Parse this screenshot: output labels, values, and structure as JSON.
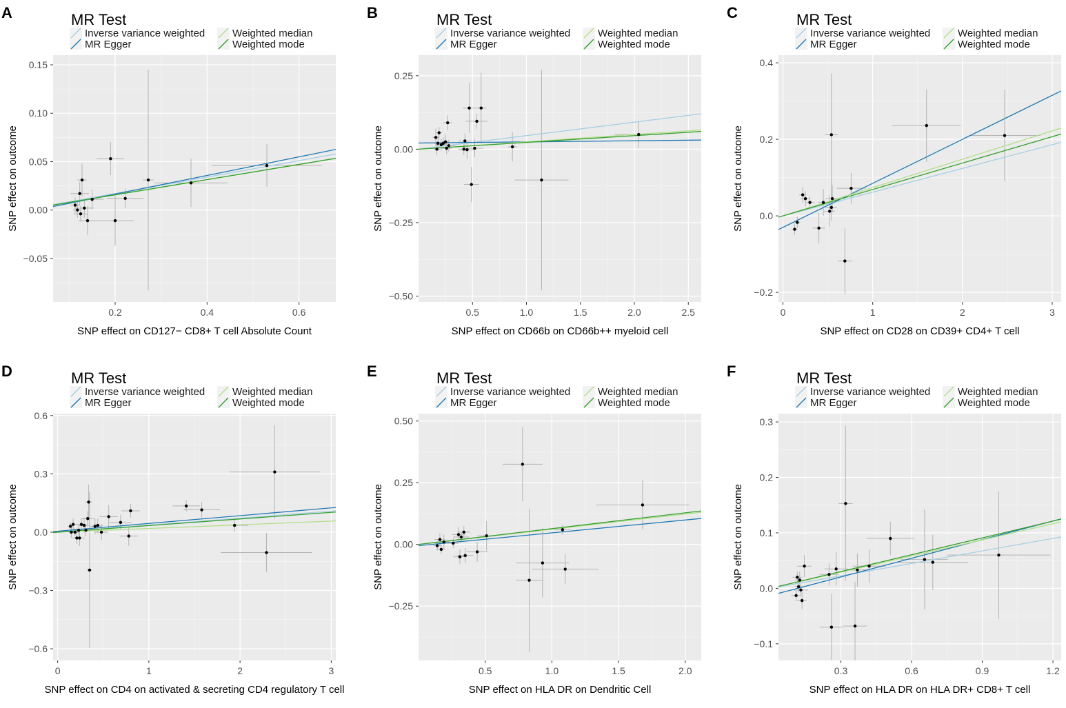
{
  "legend_title": "MR Test",
  "methods": [
    "Inverse variance weighted",
    "Weighted median",
    "MR Egger",
    "Weighted mode"
  ],
  "colors": {
    "panel_bg": "#ebebeb",
    "grid": "#ffffff",
    "Inverse variance weighted": "#a6cee3",
    "MR Egger": "#1f78b4",
    "Weighted median": "#b2df8a",
    "Weighted mode": "#33a02c",
    "errorbar": "#b3b3b3",
    "point": "#000000"
  },
  "chart_data": [
    {
      "type": "scatter",
      "panel": "A",
      "xlabel": "SNP effect on CD127− CD8+ T cell Absolute Count",
      "ylabel": "SNP effect on outcome",
      "xlim": [
        0.065,
        0.68
      ],
      "ylim": [
        -0.095,
        0.16
      ],
      "xticks": [
        0.2,
        0.4,
        0.6
      ],
      "xtick_labels": [
        "0.2",
        "0.4",
        "0.6"
      ],
      "yticks": [
        -0.05,
        0.0,
        0.05,
        0.1,
        0.15
      ],
      "ytick_labels": [
        "−0.05",
        "0.00",
        "0.05",
        "0.10",
        "0.15"
      ],
      "points": [
        {
          "x": 0.113,
          "y": 0.005,
          "xse": 0.01,
          "yse": 0.008
        },
        {
          "x": 0.118,
          "y": 0.0,
          "xse": 0.01,
          "yse": 0.008
        },
        {
          "x": 0.123,
          "y": 0.017,
          "xse": 0.02,
          "yse": 0.012
        },
        {
          "x": 0.125,
          "y": -0.004,
          "xse": 0.015,
          "yse": 0.008
        },
        {
          "x": 0.128,
          "y": 0.031,
          "xse": 0.01,
          "yse": 0.017
        },
        {
          "x": 0.133,
          "y": 0.002,
          "xse": 0.02,
          "yse": 0.01
        },
        {
          "x": 0.14,
          "y": -0.011,
          "xse": 0.02,
          "yse": 0.015
        },
        {
          "x": 0.15,
          "y": 0.011,
          "xse": 0.025,
          "yse": 0.01
        },
        {
          "x": 0.19,
          "y": 0.053,
          "xse": 0.03,
          "yse": 0.017
        },
        {
          "x": 0.2,
          "y": -0.011,
          "xse": 0.04,
          "yse": 0.026
        },
        {
          "x": 0.222,
          "y": 0.012,
          "xse": 0.04,
          "yse": 0.01
        },
        {
          "x": 0.272,
          "y": 0.031,
          "xse": 0.012,
          "yse": 0.114
        },
        {
          "x": 0.365,
          "y": 0.028,
          "xse": 0.08,
          "yse": 0.025
        },
        {
          "x": 0.53,
          "y": 0.046,
          "xse": 0.12,
          "yse": 0.022
        }
      ],
      "lines": [
        {
          "method": "Inverse variance weighted",
          "intercept": 0.0,
          "slope": 0.085
        },
        {
          "method": "MR Egger",
          "intercept": -0.0027,
          "slope": 0.096
        },
        {
          "method": "Weighted median",
          "intercept": 0.0,
          "slope": 0.0785
        },
        {
          "method": "Weighted mode",
          "intercept": 0.0,
          "slope": 0.0785
        }
      ]
    },
    {
      "type": "scatter",
      "panel": "B",
      "xlabel": "SNP effect on CD66b on CD66b++ myeloid cell",
      "ylabel": "SNP effect on outcome",
      "xlim": [
        0.0,
        2.62
      ],
      "ylim": [
        -0.52,
        0.32
      ],
      "xticks": [
        0.5,
        1.0,
        1.5,
        2.0,
        2.5
      ],
      "xtick_labels": [
        "0.5",
        "1.0",
        "1.5",
        "2.0",
        "2.5"
      ],
      "yticks": [
        -0.5,
        -0.25,
        0.0,
        0.25
      ],
      "ytick_labels": [
        "−0.50",
        "−0.25",
        "0.00",
        "0.25"
      ],
      "points": [
        {
          "x": 0.16,
          "y": 0.04,
          "xse": 0.03,
          "yse": 0.03
        },
        {
          "x": 0.17,
          "y": 0.0,
          "xse": 0.03,
          "yse": 0.02
        },
        {
          "x": 0.18,
          "y": 0.02,
          "xse": 0.04,
          "yse": 0.025
        },
        {
          "x": 0.19,
          "y": 0.056,
          "xse": 0.03,
          "yse": 0.02
        },
        {
          "x": 0.21,
          "y": 0.015,
          "xse": 0.05,
          "yse": 0.02
        },
        {
          "x": 0.23,
          "y": 0.02,
          "xse": 0.04,
          "yse": 0.02
        },
        {
          "x": 0.25,
          "y": 0.025,
          "xse": 0.03,
          "yse": 0.025
        },
        {
          "x": 0.26,
          "y": 0.003,
          "xse": 0.05,
          "yse": 0.02
        },
        {
          "x": 0.27,
          "y": 0.09,
          "xse": 0.04,
          "yse": 0.025
        },
        {
          "x": 0.28,
          "y": 0.012,
          "xse": 0.06,
          "yse": 0.02
        },
        {
          "x": 0.42,
          "y": 0.0,
          "xse": 0.05,
          "yse": 0.02
        },
        {
          "x": 0.43,
          "y": 0.028,
          "xse": 0.06,
          "yse": 0.025
        },
        {
          "x": 0.45,
          "y": -0.002,
          "xse": 0.06,
          "yse": 0.03
        },
        {
          "x": 0.47,
          "y": 0.14,
          "xse": 0.06,
          "yse": 0.085
        },
        {
          "x": 0.49,
          "y": -0.12,
          "xse": 0.07,
          "yse": 0.06
        },
        {
          "x": 0.52,
          "y": 0.003,
          "xse": 0.08,
          "yse": 0.03
        },
        {
          "x": 0.54,
          "y": 0.095,
          "xse": 0.1,
          "yse": 0.025
        },
        {
          "x": 0.58,
          "y": 0.14,
          "xse": 0.05,
          "yse": 0.12
        },
        {
          "x": 0.87,
          "y": 0.008,
          "xse": 0.04,
          "yse": 0.05
        },
        {
          "x": 1.14,
          "y": -0.105,
          "xse": 0.25,
          "yse": 0.375
        },
        {
          "x": 2.04,
          "y": 0.05,
          "xse": 0.22,
          "yse": 0.045
        }
      ],
      "lines": [
        {
          "method": "Inverse variance weighted",
          "intercept": 0.0,
          "slope": 0.046
        },
        {
          "method": "MR Egger",
          "intercept": 0.021,
          "slope": 0.0038
        },
        {
          "method": "Weighted median",
          "intercept": 0.0,
          "slope": 0.025
        },
        {
          "method": "Weighted mode",
          "intercept": 0.0,
          "slope": 0.023
        }
      ]
    },
    {
      "type": "scatter",
      "panel": "C",
      "xlabel": "SNP effect on CD28 on CD39+ CD4+ T cell",
      "ylabel": "SNP effect on outcome",
      "xlim": [
        -0.05,
        3.1
      ],
      "ylim": [
        -0.225,
        0.42
      ],
      "xticks": [
        0,
        1,
        2,
        3
      ],
      "xtick_labels": [
        "0",
        "1",
        "2",
        "3"
      ],
      "yticks": [
        -0.2,
        0.0,
        0.2,
        0.4
      ],
      "ytick_labels": [
        "−0.2",
        "0.0",
        "0.2",
        "0.4"
      ],
      "points": [
        {
          "x": 0.13,
          "y": -0.035,
          "xse": 0.03,
          "yse": 0.015
        },
        {
          "x": 0.16,
          "y": -0.017,
          "xse": 0.03,
          "yse": 0.015
        },
        {
          "x": 0.22,
          "y": 0.055,
          "xse": 0.04,
          "yse": 0.02
        },
        {
          "x": 0.25,
          "y": 0.045,
          "xse": 0.05,
          "yse": 0.02
        },
        {
          "x": 0.3,
          "y": 0.035,
          "xse": 0.05,
          "yse": 0.015
        },
        {
          "x": 0.4,
          "y": -0.032,
          "xse": 0.07,
          "yse": 0.04
        },
        {
          "x": 0.45,
          "y": 0.035,
          "xse": 0.06,
          "yse": 0.035
        },
        {
          "x": 0.52,
          "y": 0.012,
          "xse": 0.06,
          "yse": 0.04
        },
        {
          "x": 0.54,
          "y": 0.212,
          "xse": 0.07,
          "yse": 0.16
        },
        {
          "x": 0.54,
          "y": 0.022,
          "xse": 0.06,
          "yse": 0.035
        },
        {
          "x": 0.55,
          "y": 0.045,
          "xse": 0.08,
          "yse": 0.035
        },
        {
          "x": 0.69,
          "y": -0.118,
          "xse": 0.08,
          "yse": 0.085
        },
        {
          "x": 0.76,
          "y": 0.072,
          "xse": 0.16,
          "yse": 0.04
        },
        {
          "x": 1.6,
          "y": 0.236,
          "xse": 0.38,
          "yse": 0.095
        },
        {
          "x": 2.47,
          "y": 0.21,
          "xse": 0.4,
          "yse": 0.12
        }
      ],
      "lines": [
        {
          "method": "Inverse variance weighted",
          "intercept": 0.0,
          "slope": 0.062
        },
        {
          "method": "MR Egger",
          "intercept": -0.03,
          "slope": 0.115
        },
        {
          "method": "Weighted median",
          "intercept": 0.0,
          "slope": 0.074
        },
        {
          "method": "Weighted mode",
          "intercept": 0.0,
          "slope": 0.069
        }
      ]
    },
    {
      "type": "scatter",
      "panel": "D",
      "xlabel": "SNP effect on CD4 on activated & secreting CD4 regulatory T cell",
      "ylabel": "SNP effect on outcome",
      "xlim": [
        -0.05,
        3.05
      ],
      "ylim": [
        -0.66,
        0.61
      ],
      "xticks": [
        0,
        1,
        2,
        3
      ],
      "xtick_labels": [
        "0",
        "1",
        "2",
        "3"
      ],
      "yticks": [
        -0.6,
        -0.3,
        0.0,
        0.3,
        0.6
      ],
      "ytick_labels": [
        "−0.6",
        "−0.3",
        "0.0",
        "0.3",
        "0.6"
      ],
      "points": [
        {
          "x": 0.14,
          "y": 0.03,
          "xse": 0.03,
          "yse": 0.02
        },
        {
          "x": 0.15,
          "y": 0.0,
          "xse": 0.03,
          "yse": 0.03
        },
        {
          "x": 0.17,
          "y": 0.04,
          "xse": 0.04,
          "yse": 0.03
        },
        {
          "x": 0.19,
          "y": 0.0,
          "xse": 0.04,
          "yse": 0.02
        },
        {
          "x": 0.21,
          "y": -0.03,
          "xse": 0.05,
          "yse": 0.03
        },
        {
          "x": 0.23,
          "y": 0.01,
          "xse": 0.04,
          "yse": 0.03
        },
        {
          "x": 0.24,
          "y": -0.03,
          "xse": 0.06,
          "yse": 0.04
        },
        {
          "x": 0.26,
          "y": 0.04,
          "xse": 0.05,
          "yse": 0.03
        },
        {
          "x": 0.29,
          "y": 0.035,
          "xse": 0.06,
          "yse": 0.04
        },
        {
          "x": 0.31,
          "y": 0.01,
          "xse": 0.08,
          "yse": 0.03
        },
        {
          "x": 0.33,
          "y": 0.07,
          "xse": 0.07,
          "yse": 0.04
        },
        {
          "x": 0.34,
          "y": 0.155,
          "xse": 0.04,
          "yse": 0.09
        },
        {
          "x": 0.35,
          "y": -0.195,
          "xse": 0.03,
          "yse": 0.4
        },
        {
          "x": 0.41,
          "y": 0.03,
          "xse": 0.06,
          "yse": 0.04
        },
        {
          "x": 0.44,
          "y": 0.035,
          "xse": 0.06,
          "yse": 0.035
        },
        {
          "x": 0.48,
          "y": 0.0,
          "xse": 0.07,
          "yse": 0.04
        },
        {
          "x": 0.56,
          "y": 0.08,
          "xse": 0.1,
          "yse": 0.06
        },
        {
          "x": 0.69,
          "y": 0.05,
          "xse": 0.12,
          "yse": 0.04
        },
        {
          "x": 0.78,
          "y": -0.02,
          "xse": 0.1,
          "yse": 0.05
        },
        {
          "x": 0.8,
          "y": 0.11,
          "xse": 0.1,
          "yse": 0.035
        },
        {
          "x": 1.41,
          "y": 0.135,
          "xse": 0.15,
          "yse": 0.03
        },
        {
          "x": 1.58,
          "y": 0.115,
          "xse": 0.2,
          "yse": 0.04
        },
        {
          "x": 1.94,
          "y": 0.035,
          "xse": 0.15,
          "yse": 0.035
        },
        {
          "x": 2.29,
          "y": -0.105,
          "xse": 0.5,
          "yse": 0.1
        },
        {
          "x": 2.38,
          "y": 0.31,
          "xse": 0.5,
          "yse": 0.24
        }
      ],
      "lines": [
        {
          "method": "Inverse variance weighted",
          "intercept": 0.0,
          "slope": 0.036
        },
        {
          "method": "MR Egger",
          "intercept": 0.005,
          "slope": 0.04
        },
        {
          "method": "Weighted median",
          "intercept": 0.0,
          "slope": 0.019
        },
        {
          "method": "Weighted mode",
          "intercept": 0.0,
          "slope": 0.034
        }
      ]
    },
    {
      "type": "scatter",
      "panel": "E",
      "xlabel": "SNP effect on HLA DR on Dendritic Cell",
      "ylabel": "SNP effect on outcome",
      "xlim": [
        0.0,
        2.12
      ],
      "ylim": [
        -0.47,
        0.53
      ],
      "xticks": [
        0.5,
        1.0,
        1.5,
        2.0
      ],
      "xtick_labels": [
        "0.5",
        "1.0",
        "1.5",
        "2.0"
      ],
      "yticks": [
        -0.25,
        0.0,
        0.25,
        0.5
      ],
      "ytick_labels": [
        "−0.25",
        "0.00",
        "0.25",
        "0.50"
      ],
      "points": [
        {
          "x": 0.14,
          "y": -0.005,
          "xse": 0.03,
          "yse": 0.02
        },
        {
          "x": 0.16,
          "y": 0.02,
          "xse": 0.04,
          "yse": 0.025
        },
        {
          "x": 0.17,
          "y": -0.02,
          "xse": 0.03,
          "yse": 0.02
        },
        {
          "x": 0.19,
          "y": 0.01,
          "xse": 0.04,
          "yse": 0.03
        },
        {
          "x": 0.26,
          "y": 0.005,
          "xse": 0.04,
          "yse": 0.02
        },
        {
          "x": 0.3,
          "y": 0.04,
          "xse": 0.05,
          "yse": 0.03
        },
        {
          "x": 0.31,
          "y": -0.05,
          "xse": 0.05,
          "yse": 0.03
        },
        {
          "x": 0.32,
          "y": 0.03,
          "xse": 0.06,
          "yse": 0.02
        },
        {
          "x": 0.34,
          "y": 0.05,
          "xse": 0.05,
          "yse": 0.025
        },
        {
          "x": 0.35,
          "y": -0.045,
          "xse": 0.06,
          "yse": 0.03
        },
        {
          "x": 0.44,
          "y": -0.03,
          "xse": 0.08,
          "yse": 0.04
        },
        {
          "x": 0.51,
          "y": 0.035,
          "xse": 0.07,
          "yse": 0.06
        },
        {
          "x": 0.78,
          "y": 0.325,
          "xse": 0.15,
          "yse": 0.15
        },
        {
          "x": 0.83,
          "y": -0.145,
          "xse": 0.1,
          "yse": 0.29
        },
        {
          "x": 0.93,
          "y": -0.075,
          "xse": 0.2,
          "yse": 0.14
        },
        {
          "x": 1.08,
          "y": 0.06,
          "xse": 0.06,
          "yse": 0.02
        },
        {
          "x": 1.1,
          "y": -0.1,
          "xse": 0.25,
          "yse": 0.06
        },
        {
          "x": 1.68,
          "y": 0.16,
          "xse": 0.35,
          "yse": 0.1
        }
      ],
      "lines": [
        {
          "method": "Inverse variance weighted",
          "intercept": 0.0,
          "slope": 0.0617
        },
        {
          "method": "MR Egger",
          "intercept": -0.005,
          "slope": 0.052
        },
        {
          "method": "Weighted median",
          "intercept": 0.0,
          "slope": 0.0617
        },
        {
          "method": "Weighted mode",
          "intercept": 0.0,
          "slope": 0.0641
        }
      ]
    },
    {
      "type": "scatter",
      "panel": "F",
      "xlabel": "SNP effect on HLA DR on HLA DR+ CD8+ T cell",
      "ylabel": "SNP effect on outcome",
      "xlim": [
        0.035,
        1.235
      ],
      "ylim": [
        -0.13,
        0.315
      ],
      "xticks": [
        0.3,
        0.6,
        0.9,
        1.2
      ],
      "xtick_labels": [
        "0.3",
        "0.6",
        "0.9",
        "1.2"
      ],
      "yticks": [
        -0.1,
        0.0,
        0.1,
        0.2,
        0.3
      ],
      "ytick_labels": [
        "−0.1",
        "0.0",
        "0.1",
        "0.2",
        "0.3"
      ],
      "points": [
        {
          "x": 0.11,
          "y": -0.013,
          "xse": 0.02,
          "yse": 0.01
        },
        {
          "x": 0.115,
          "y": 0.02,
          "xse": 0.02,
          "yse": 0.01
        },
        {
          "x": 0.12,
          "y": 0.003,
          "xse": 0.02,
          "yse": 0.01
        },
        {
          "x": 0.125,
          "y": 0.015,
          "xse": 0.02,
          "yse": 0.015
        },
        {
          "x": 0.13,
          "y": -0.003,
          "xse": 0.03,
          "yse": 0.01
        },
        {
          "x": 0.135,
          "y": -0.022,
          "xse": 0.02,
          "yse": 0.015
        },
        {
          "x": 0.145,
          "y": 0.04,
          "xse": 0.03,
          "yse": 0.02
        },
        {
          "x": 0.25,
          "y": 0.025,
          "xse": 0.04,
          "yse": 0.02
        },
        {
          "x": 0.26,
          "y": -0.07,
          "xse": 0.05,
          "yse": 0.06
        },
        {
          "x": 0.28,
          "y": 0.035,
          "xse": 0.05,
          "yse": 0.03
        },
        {
          "x": 0.32,
          "y": 0.153,
          "xse": 0.03,
          "yse": 0.14
        },
        {
          "x": 0.36,
          "y": -0.068,
          "xse": 0.05,
          "yse": 0.08
        },
        {
          "x": 0.37,
          "y": 0.033,
          "xse": 0.05,
          "yse": 0.03
        },
        {
          "x": 0.42,
          "y": 0.04,
          "xse": 0.07,
          "yse": 0.03
        },
        {
          "x": 0.51,
          "y": 0.09,
          "xse": 0.1,
          "yse": 0.03
        },
        {
          "x": 0.655,
          "y": 0.052,
          "xse": 0.1,
          "yse": 0.09
        },
        {
          "x": 0.69,
          "y": 0.047,
          "xse": 0.15,
          "yse": 0.05
        },
        {
          "x": 0.97,
          "y": 0.06,
          "xse": 0.22,
          "yse": 0.115
        }
      ],
      "lines": [
        {
          "method": "Inverse variance weighted",
          "intercept": 0.0,
          "slope": 0.075
        },
        {
          "method": "MR Egger",
          "intercept": -0.013,
          "slope": 0.112
        },
        {
          "method": "Weighted median",
          "intercept": 0.0,
          "slope": 0.097
        },
        {
          "method": "Weighted mode",
          "intercept": 0.0,
          "slope": 0.101
        }
      ]
    }
  ]
}
